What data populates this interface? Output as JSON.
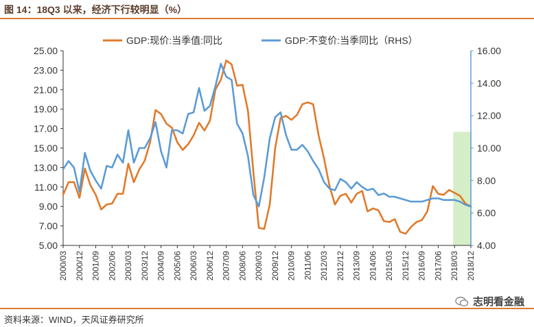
{
  "header": {
    "title": "图 14：18Q3 以来，经济下行较明显（%）"
  },
  "footer": {
    "source": "资料来源：WIND，天风证券研究所",
    "watermark": "志明看金融"
  },
  "colors": {
    "nominal": "#e07a2b",
    "real": "#5b9bd5",
    "highlight": "#d6eec7",
    "axis_right": "#5b9bd5",
    "rule": "#e07a2b"
  },
  "chart_data": {
    "type": "line",
    "title": "",
    "xlabel": "",
    "ylabel": "",
    "ylim": [
      5,
      25
    ],
    "y2lim": [
      4,
      16
    ],
    "yticks": [
      "25.00",
      "23.00",
      "21.00",
      "19.00",
      "17.00",
      "15.00",
      "13.00",
      "11.00",
      "9.00",
      "7.00",
      "5.00"
    ],
    "y2ticks": [
      "16.00",
      "14.00",
      "12.00",
      "10.00",
      "8.00",
      "6.00",
      "4.00"
    ],
    "x_tick_labels": [
      "2000/03",
      "2000/12",
      "2001/09",
      "2002/06",
      "2003/03",
      "2003/12",
      "2004/09",
      "2005/06",
      "2006/03",
      "2006/12",
      "2007/09",
      "2008/06",
      "2009/03",
      "2009/12",
      "2010/09",
      "2011/06",
      "2012/03",
      "2012/12",
      "2013/09",
      "2014/06",
      "2015/03",
      "2015/12",
      "2016/09",
      "2017/06",
      "2018/03",
      "2018/12"
    ],
    "highlight_range": [
      "2018/03",
      "2018/12"
    ],
    "highlight_top": 11.0,
    "legend_position": "top",
    "series": [
      {
        "name": "GDP:现价:当季值:同比",
        "axis": "left",
        "color": "#e07a2b",
        "values": [
          10.2,
          11.5,
          11.5,
          9.9,
          12.9,
          11.2,
          10.2,
          8.7,
          9.2,
          9.3,
          10.3,
          10.3,
          13.4,
          11.5,
          12.8,
          13.7,
          15.6,
          18.9,
          18.5,
          17.5,
          17.1,
          15.6,
          14.8,
          15.4,
          16.3,
          17.6,
          16.8,
          17.8,
          21.0,
          22.0,
          24.0,
          23.6,
          21.4,
          21.5,
          18.8,
          12.5,
          6.8,
          6.7,
          9.2,
          15.0,
          18.1,
          18.3,
          17.9,
          18.4,
          19.5,
          19.7,
          19.5,
          16.3,
          13.9,
          11.1,
          9.2,
          10.1,
          10.3,
          9.4,
          10.3,
          10.6,
          8.5,
          8.8,
          8.6,
          7.5,
          7.4,
          7.7,
          6.4,
          6.2,
          6.9,
          7.4,
          7.6,
          8.5,
          11.1,
          10.3,
          10.2,
          10.7,
          10.4,
          10.1,
          9.3,
          9.0
        ]
      },
      {
        "name": "GDP:不变价:当季同比（RHS）",
        "axis": "right",
        "color": "#5b9bd5",
        "values": [
          8.7,
          9.2,
          8.8,
          7.3,
          9.7,
          8.6,
          8.0,
          7.5,
          8.9,
          8.8,
          9.6,
          9.1,
          11.1,
          9.1,
          10.0,
          10.0,
          10.6,
          11.6,
          9.8,
          8.8,
          11.1,
          11.1,
          10.9,
          12.1,
          12.2,
          13.7,
          12.3,
          12.6,
          13.8,
          15.2,
          14.4,
          14.2,
          11.5,
          10.9,
          9.5,
          7.1,
          6.4,
          8.2,
          10.6,
          11.9,
          12.2,
          10.8,
          9.9,
          9.9,
          10.2,
          9.8,
          9.2,
          8.7,
          7.9,
          7.5,
          7.4,
          8.1,
          7.9,
          7.5,
          7.9,
          7.6,
          7.4,
          7.5,
          7.1,
          7.2,
          7.0,
          7.0,
          6.9,
          6.8,
          6.7,
          6.7,
          6.7,
          6.8,
          6.9,
          6.9,
          6.8,
          6.8,
          6.8,
          6.7,
          6.5,
          6.4
        ]
      }
    ]
  }
}
